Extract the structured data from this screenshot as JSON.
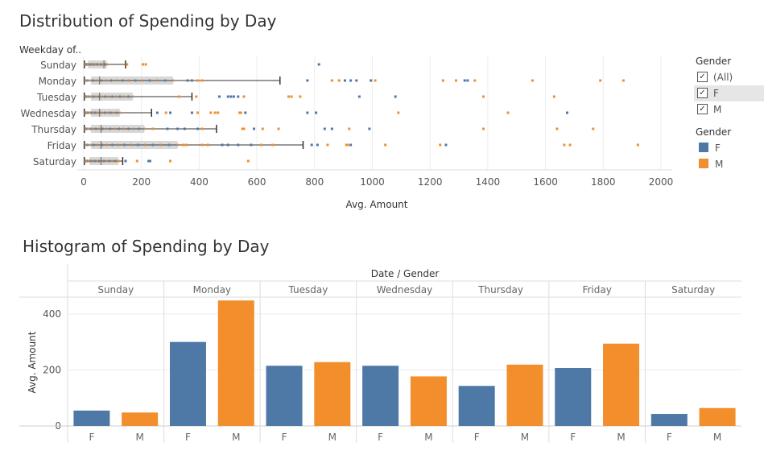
{
  "titles": {
    "box": "Distribution of Spending by Day",
    "hist": "Histogram of Spending by Day"
  },
  "filter_legend": {
    "title": "Gender",
    "items": [
      {
        "label": "(All)",
        "checked": true
      },
      {
        "label": "F",
        "checked": true,
        "selected": true
      },
      {
        "label": "M",
        "checked": true
      }
    ]
  },
  "color_legend": {
    "title": "Gender",
    "items": [
      {
        "label": "F",
        "color": "#4e79a7"
      },
      {
        "label": "M",
        "color": "#f28e2b"
      }
    ]
  },
  "chart_data": [
    {
      "type": "box",
      "title": "Distribution of Spending by Day",
      "row_header": "Weekday of..",
      "xlabel": "Avg. Amount",
      "xlim": [
        0,
        2000
      ],
      "xticks": [
        "0",
        "200",
        "400",
        "600",
        "800",
        "1000",
        "1200",
        "1400",
        "1600",
        "1800",
        "2000"
      ],
      "categories": [
        "Sunday",
        "Monday",
        "Tuesday",
        "Wednesday",
        "Thursday",
        "Friday",
        "Saturday"
      ],
      "colors": {
        "F": "#4e79a7",
        "M": "#f28e2b"
      },
      "boxes": [
        {
          "day": "Sunday",
          "min": 2,
          "q1": 15,
          "median": 70,
          "q3": 80,
          "max": 145
        },
        {
          "day": "Monday",
          "min": 2,
          "q1": 25,
          "median": 55,
          "q3": 310,
          "max": 680
        },
        {
          "day": "Tuesday",
          "min": 2,
          "q1": 25,
          "median": 55,
          "q3": 170,
          "max": 375
        },
        {
          "day": "Wednesday",
          "min": 2,
          "q1": 25,
          "median": 55,
          "q3": 125,
          "max": 235
        },
        {
          "day": "Thursday",
          "min": 2,
          "q1": 25,
          "median": 60,
          "q3": 210,
          "max": 460
        },
        {
          "day": "Friday",
          "min": 2,
          "q1": 25,
          "median": 60,
          "q3": 325,
          "max": 760
        },
        {
          "day": "Saturday",
          "min": 2,
          "q1": 20,
          "median": 60,
          "q3": 120,
          "max": 135
        }
      ],
      "outliers": [
        {
          "day": "Sunday",
          "gender": "F",
          "values": [
            815
          ]
        },
        {
          "day": "Sunday",
          "gender": "M",
          "values": [
            150,
            205,
            215
          ]
        },
        {
          "day": "Monday",
          "gender": "F",
          "values": [
            360,
            375,
            775,
            905,
            925,
            945,
            995,
            1320,
            1330
          ]
        },
        {
          "day": "Monday",
          "gender": "M",
          "values": [
            395,
            410,
            860,
            885,
            1010,
            1245,
            1290,
            1355,
            1555,
            1790,
            1870
          ]
        },
        {
          "day": "Tuesday",
          "gender": "F",
          "values": [
            470,
            500,
            510,
            520,
            535,
            955,
            1080
          ]
        },
        {
          "day": "Tuesday",
          "gender": "M",
          "values": [
            330,
            390,
            555,
            710,
            720,
            750,
            1385,
            1630
          ]
        },
        {
          "day": "Wednesday",
          "gender": "F",
          "values": [
            255,
            300,
            375,
            560,
            775,
            805,
            1675
          ]
        },
        {
          "day": "Wednesday",
          "gender": "M",
          "values": [
            285,
            395,
            440,
            455,
            465,
            540,
            545,
            1090,
            1470
          ]
        },
        {
          "day": "Thursday",
          "gender": "F",
          "values": [
            290,
            325,
            350,
            395,
            590,
            835,
            860,
            990
          ]
        },
        {
          "day": "Thursday",
          "gender": "M",
          "values": [
            240,
            410,
            550,
            555,
            620,
            675,
            920,
            1385,
            1640,
            1765
          ]
        },
        {
          "day": "Friday",
          "gender": "F",
          "values": [
            480,
            500,
            535,
            580,
            790,
            810,
            925,
            1255
          ]
        },
        {
          "day": "Friday",
          "gender": "M",
          "values": [
            345,
            355,
            410,
            430,
            615,
            655,
            845,
            910,
            915,
            1045,
            1235,
            1665,
            1685,
            1920
          ]
        },
        {
          "day": "Saturday",
          "gender": "F",
          "values": [
            145,
            225,
            230
          ]
        },
        {
          "day": "Saturday",
          "gender": "M",
          "values": [
            120,
            185,
            300,
            570
          ]
        }
      ]
    },
    {
      "type": "bar",
      "title": "Histogram of Spending by Day",
      "column_header": "Date / Gender",
      "ylabel": "Avg. Amount",
      "ylim": [
        0,
        460
      ],
      "yticks": [
        "0",
        "200",
        "400"
      ],
      "days": [
        "Sunday",
        "Monday",
        "Tuesday",
        "Wednesday",
        "Thursday",
        "Friday",
        "Saturday"
      ],
      "genders": [
        "F",
        "M"
      ],
      "series": [
        {
          "name": "F",
          "color": "#4e79a7",
          "values": [
            55,
            300,
            215,
            215,
            143,
            207,
            43
          ]
        },
        {
          "name": "M",
          "color": "#f28e2b",
          "values": [
            48,
            448,
            228,
            177,
            219,
            294,
            64
          ]
        }
      ]
    }
  ]
}
